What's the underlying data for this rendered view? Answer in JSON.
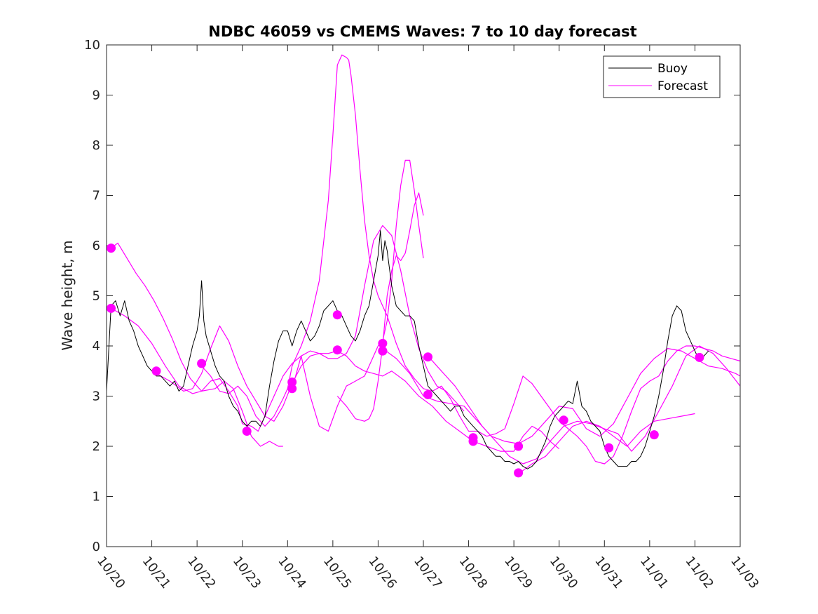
{
  "chart_data": {
    "type": "line",
    "title": "NDBC 46059 vs CMEMS Waves: 7 to 10 day forecast",
    "xlabel": "",
    "ylabel": "Wave height, m",
    "xlim": [
      0,
      14
    ],
    "ylim": [
      0,
      10
    ],
    "x_tick_labels": [
      "10/20",
      "10/21",
      "10/22",
      "10/23",
      "10/24",
      "10/25",
      "10/26",
      "10/27",
      "10/28",
      "10/29",
      "10/30",
      "10/31",
      "11/01",
      "11/02",
      "11/03"
    ],
    "y_tick_labels": [
      "0",
      "1",
      "2",
      "3",
      "4",
      "5",
      "6",
      "7",
      "8",
      "9",
      "10"
    ],
    "legend": {
      "position": "top-right",
      "entries": [
        "Buoy",
        "Forecast"
      ]
    },
    "colors": {
      "buoy": "#000000",
      "forecast": "#ff00ff",
      "axes": "#262626"
    },
    "series": [
      {
        "name": "Buoy",
        "x": [
          0,
          0.1,
          0.2,
          0.3,
          0.4,
          0.5,
          0.6,
          0.7,
          0.8,
          0.9,
          1,
          1.1,
          1.2,
          1.3,
          1.4,
          1.5,
          1.6,
          1.7,
          1.8,
          1.9,
          2,
          2.05,
          2.1,
          2.15,
          2.2,
          2.3,
          2.4,
          2.5,
          2.6,
          2.7,
          2.8,
          2.9,
          3,
          3.1,
          3.2,
          3.3,
          3.4,
          3.5,
          3.6,
          3.7,
          3.8,
          3.9,
          4,
          4.1,
          4.2,
          4.3,
          4.4,
          4.5,
          4.6,
          4.7,
          4.8,
          4.9,
          5,
          5.1,
          5.2,
          5.3,
          5.4,
          5.5,
          5.6,
          5.7,
          5.8,
          5.9,
          6,
          6.05,
          6.1,
          6.15,
          6.2,
          6.3,
          6.4,
          6.5,
          6.6,
          6.7,
          6.8,
          6.9,
          7,
          7.1,
          7.2,
          7.3,
          7.4,
          7.5,
          7.6,
          7.7,
          7.8,
          7.9,
          8,
          8.1,
          8.2,
          8.3,
          8.4,
          8.5,
          8.6,
          8.7,
          8.8,
          8.9,
          9,
          9.1,
          9.2,
          9.3,
          9.4,
          9.5,
          9.6,
          9.7,
          9.8,
          9.9,
          10,
          10.1,
          10.2,
          10.3,
          10.4,
          10.5,
          10.6,
          10.7,
          10.8,
          10.9,
          11,
          11.1,
          11.2,
          11.3,
          11.4,
          11.5,
          11.6,
          11.7,
          11.8,
          11.9,
          12,
          12.1,
          12.2,
          12.3,
          12.4,
          12.5,
          12.6,
          12.7,
          12.8,
          12.9,
          13,
          13.1,
          13.2,
          13.3
        ],
        "values": [
          3.1,
          4.8,
          4.9,
          4.6,
          4.9,
          4.5,
          4.3,
          4.0,
          3.8,
          3.6,
          3.5,
          3.4,
          3.4,
          3.3,
          3.2,
          3.3,
          3.1,
          3.2,
          3.6,
          4.0,
          4.3,
          4.6,
          5.3,
          4.5,
          4.2,
          3.9,
          3.6,
          3.4,
          3.3,
          3.0,
          2.8,
          2.7,
          2.5,
          2.4,
          2.5,
          2.5,
          2.4,
          2.6,
          3.2,
          3.7,
          4.1,
          4.3,
          4.3,
          4.0,
          4.3,
          4.5,
          4.3,
          4.1,
          4.2,
          4.4,
          4.7,
          4.8,
          4.9,
          4.7,
          4.6,
          4.4,
          4.2,
          4.1,
          4.3,
          4.6,
          4.8,
          5.3,
          5.8,
          6.3,
          5.7,
          6.1,
          5.9,
          5.2,
          4.8,
          4.7,
          4.6,
          4.6,
          4.5,
          4.0,
          3.6,
          3.2,
          3.1,
          3.0,
          2.9,
          2.8,
          2.7,
          2.8,
          2.8,
          2.6,
          2.5,
          2.4,
          2.3,
          2.2,
          2.0,
          1.9,
          1.8,
          1.8,
          1.7,
          1.7,
          1.65,
          1.7,
          1.6,
          1.55,
          1.6,
          1.7,
          1.9,
          2.1,
          2.4,
          2.6,
          2.7,
          2.8,
          2.9,
          2.85,
          3.3,
          2.8,
          2.7,
          2.5,
          2.4,
          2.3,
          2.0,
          1.8,
          1.7,
          1.6,
          1.6,
          1.6,
          1.7,
          1.7,
          1.8,
          2.0,
          2.3,
          2.6,
          3.0,
          3.5,
          4.1,
          4.6,
          4.8,
          4.7,
          4.3,
          4.1,
          3.9,
          3.7,
          3.8,
          3.9
        ]
      }
    ],
    "forecast_series": [
      {
        "name": "Forecast",
        "x": [
          0.1,
          0.25,
          0.45,
          0.65,
          0.85,
          1.05,
          1.25,
          1.45,
          1.65,
          1.85,
          2.1,
          2.4,
          2.6,
          2.8,
          3.0,
          3.2,
          3.4,
          3.6,
          3.8,
          3.9
        ],
        "values": [
          5.95,
          6.05,
          5.75,
          5.45,
          5.2,
          4.9,
          4.55,
          4.15,
          3.7,
          3.35,
          3.1,
          3.15,
          3.3,
          3.15,
          2.7,
          2.2,
          2.0,
          2.1,
          2.0,
          2.0
        ]
      },
      {
        "name": "Forecast",
        "x": [
          0.1,
          0.4,
          0.7,
          1.0,
          1.3,
          1.6,
          1.9,
          2.1,
          2.3,
          2.5,
          2.7,
          2.9,
          3.0,
          3.2,
          3.35,
          3.5,
          3.7,
          3.9,
          4.1,
          4.3,
          4.5,
          4.7,
          4.9,
          5.1,
          5.3,
          5.5,
          5.7,
          5.9,
          6.1,
          6.3,
          6.5,
          6.7,
          6.9,
          7.1,
          7.3,
          7.5,
          7.7,
          7.9
        ],
        "values": [
          4.75,
          4.6,
          4.4,
          4.05,
          3.6,
          3.2,
          3.05,
          3.1,
          3.3,
          3.35,
          3.1,
          2.8,
          2.45,
          2.4,
          2.3,
          2.6,
          3.0,
          3.4,
          3.65,
          3.8,
          3.9,
          3.85,
          3.75,
          3.75,
          3.85,
          4.2,
          5.2,
          6.1,
          6.4,
          6.2,
          5.5,
          4.6,
          3.95,
          3.5,
          3.2,
          3.1,
          2.9,
          2.7
        ]
      },
      {
        "name": "Forecast",
        "x": [
          1.1,
          1.4,
          1.7,
          1.9,
          2.1,
          2.3,
          2.5,
          2.7,
          2.9,
          3.1,
          3.3,
          3.5,
          3.7,
          3.9,
          4.1,
          4.3,
          4.5,
          4.7,
          4.9,
          5.1,
          5.3,
          5.5,
          5.7,
          5.9,
          6.1,
          6.3,
          6.6,
          6.9,
          7.2,
          7.5,
          7.8,
          8.1,
          8.4,
          8.7,
          9.0,
          9.2,
          9.4,
          9.6,
          9.8,
          10.0
        ],
        "values": [
          3.45,
          3.3,
          3.1,
          3.15,
          3.45,
          3.95,
          4.4,
          4.1,
          3.6,
          3.2,
          2.9,
          2.6,
          2.5,
          2.8,
          3.25,
          3.6,
          3.8,
          3.85,
          3.85,
          3.9,
          3.8,
          3.6,
          3.5,
          3.45,
          3.4,
          3.5,
          3.3,
          3.0,
          2.8,
          2.5,
          2.3,
          2.1,
          2.0,
          1.9,
          1.9,
          2.2,
          2.4,
          2.3,
          2.1,
          1.95
        ]
      },
      {
        "name": "Forecast",
        "x": [
          2.1,
          2.3,
          2.5,
          2.7,
          2.9,
          3.1,
          3.3,
          3.5,
          3.7,
          3.9,
          4.0,
          4.1,
          4.3,
          4.5,
          4.7,
          4.9,
          5.0,
          5.1,
          5.2,
          5.3,
          5.35,
          5.4,
          5.5,
          5.6,
          5.7,
          5.8,
          5.9,
          6.0,
          6.2,
          6.4,
          6.6,
          6.8,
          7.0,
          7.2,
          7.4,
          7.6,
          7.8,
          8.0,
          8.2,
          8.4,
          8.6,
          8.8,
          9.0,
          9.2,
          9.4,
          9.6,
          9.8,
          10.0,
          10.2,
          10.4,
          10.6,
          10.8,
          11.0,
          11.2,
          11.4,
          11.6,
          11.8,
          12.0,
          12.2,
          12.4,
          12.6,
          12.8,
          13.0,
          13.2,
          13.4,
          13.6,
          13.8,
          14.0
        ],
        "values": [
          3.6,
          3.4,
          3.1,
          3.05,
          3.2,
          3.0,
          2.6,
          2.4,
          2.6,
          2.95,
          3.15,
          3.6,
          4.0,
          4.5,
          5.3,
          6.9,
          8.2,
          9.6,
          9.8,
          9.75,
          9.7,
          9.4,
          8.6,
          7.5,
          6.5,
          5.8,
          5.3,
          5.0,
          4.6,
          4.05,
          3.6,
          3.35,
          3.15,
          3.1,
          3.2,
          2.95,
          2.6,
          2.3,
          2.3,
          2.2,
          2.25,
          2.35,
          2.85,
          3.4,
          3.25,
          3.0,
          2.75,
          2.5,
          2.35,
          2.2,
          2.0,
          1.7,
          1.65,
          1.8,
          2.2,
          2.7,
          3.15,
          3.3,
          3.4,
          3.7,
          3.9,
          4.0,
          4.0,
          3.95,
          3.9,
          3.8,
          3.75,
          3.7
        ]
      },
      {
        "name": "Forecast",
        "x": [
          4.1,
          4.3,
          4.5,
          4.7,
          4.9,
          5.1,
          5.3,
          5.5,
          5.7,
          5.9,
          6.0,
          6.1,
          6.2,
          6.3,
          6.4,
          6.5,
          6.6,
          6.7,
          6.8,
          6.9,
          7.0
        ],
        "values": [
          3.15,
          3.8,
          3.0,
          2.4,
          2.3,
          2.8,
          3.2,
          3.3,
          3.4,
          3.8,
          4.0,
          4.1,
          4.5,
          5.3,
          6.4,
          7.2,
          7.7,
          7.7,
          7.1,
          6.4,
          5.75
        ]
      },
      {
        "name": "Forecast",
        "x": [
          5.1,
          5.3,
          5.5,
          5.7,
          5.8,
          5.9,
          6.0,
          6.1,
          6.2,
          6.3,
          6.4,
          6.5,
          6.6,
          6.7,
          6.8,
          6.9,
          7.0
        ],
        "values": [
          3.0,
          2.8,
          2.55,
          2.5,
          2.55,
          2.75,
          3.3,
          4.0,
          5.0,
          5.5,
          5.8,
          5.7,
          5.85,
          6.3,
          6.8,
          7.05,
          6.6
        ]
      },
      {
        "name": "Forecast",
        "x": [
          6.1,
          6.4,
          6.7,
          7.0,
          7.3,
          7.6,
          7.9,
          8.2,
          8.5,
          8.8,
          9.1,
          9.4,
          9.7,
          10.0,
          10.3,
          10.6,
          10.9,
          11.2,
          11.5,
          11.8,
          12.1,
          12.4,
          12.7,
          13.0,
          13.3,
          13.6,
          13.9,
          14.0
        ],
        "values": [
          3.95,
          3.75,
          3.45,
          3.0,
          2.9,
          2.85,
          2.8,
          2.5,
          2.2,
          2.1,
          2.05,
          2.2,
          2.5,
          2.8,
          2.75,
          2.35,
          2.2,
          2.45,
          2.95,
          3.45,
          3.75,
          3.95,
          3.9,
          3.75,
          3.6,
          3.55,
          3.45,
          3.4
        ]
      },
      {
        "name": "Forecast",
        "x": [
          7.1,
          7.4,
          7.7,
          8.0,
          8.3,
          8.6,
          8.9,
          9.2,
          9.5,
          9.8,
          10.1,
          10.4,
          10.7,
          11.0,
          11.3,
          11.6,
          11.9,
          12.2,
          12.5,
          12.8,
          13.1,
          13.4,
          13.7,
          14.0
        ],
        "values": [
          3.8,
          3.5,
          3.2,
          2.8,
          2.4,
          2.1,
          1.8,
          1.65,
          1.75,
          2.1,
          2.4,
          2.5,
          2.45,
          2.35,
          2.25,
          1.9,
          2.2,
          2.7,
          3.2,
          3.8,
          4.0,
          3.85,
          3.55,
          3.2
        ]
      },
      {
        "name": "Forecast",
        "x": [
          9.1,
          9.4,
          9.7,
          10.0,
          10.3,
          10.6,
          10.9,
          11.2,
          11.5,
          11.8,
          12.1,
          12.4,
          12.7,
          13.0
        ],
        "values": [
          1.45,
          1.65,
          1.8,
          2.1,
          2.4,
          2.5,
          2.4,
          2.2,
          2.0,
          2.3,
          2.5,
          2.55,
          2.6,
          2.65
        ]
      }
    ],
    "markers": {
      "name": "Forecast",
      "x": [
        0.1,
        0.1,
        1.1,
        2.1,
        3.1,
        4.1,
        4.1,
        5.1,
        5.1,
        6.1,
        6.1,
        6.1,
        7.1,
        7.1,
        8.1,
        8.1,
        9.1,
        9.1,
        10.1,
        11.1,
        12.1,
        13.1
      ],
      "values": [
        5.95,
        4.75,
        3.5,
        3.65,
        2.3,
        3.28,
        3.15,
        4.62,
        3.92,
        4.05,
        3.9,
        3.9,
        3.78,
        3.03,
        2.17,
        2.1,
        2.0,
        1.47,
        2.52,
        1.97,
        2.23,
        3.77
      ]
    }
  }
}
